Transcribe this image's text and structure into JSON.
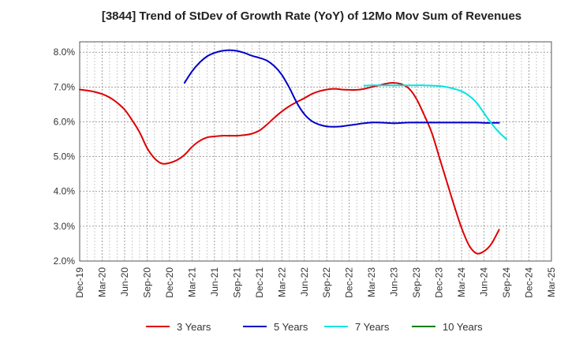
{
  "chart_data": {
    "type": "line",
    "title": "[3844]  Trend of StDev of Growth Rate (YoY) of 12Mo Mov Sum of Revenues",
    "xlabel": "",
    "ylabel": "",
    "ylim": [
      2.0,
      8.3
    ],
    "yticks": [
      2.0,
      3.0,
      4.0,
      5.0,
      6.0,
      7.0,
      8.0
    ],
    "ytick_labels": [
      "2.0%",
      "3.0%",
      "4.0%",
      "5.0%",
      "6.0%",
      "7.0%",
      "8.0%"
    ],
    "x_categories": [
      "Dec-19",
      "Mar-20",
      "Jun-20",
      "Sep-20",
      "Dec-20",
      "Mar-21",
      "Jun-21",
      "Sep-21",
      "Dec-21",
      "Mar-22",
      "Jun-22",
      "Sep-22",
      "Dec-22",
      "Mar-23",
      "Jun-23",
      "Sep-23",
      "Dec-23",
      "Mar-24",
      "Jun-24",
      "Sep-24",
      "Dec-24",
      "Mar-25"
    ],
    "grid": true,
    "legend_position": "bottom",
    "series": [
      {
        "name": "3 Years",
        "color": "#dd0000",
        "start_index": 0,
        "values": [
          6.93,
          6.9,
          6.86,
          6.8,
          6.7,
          6.55,
          6.35,
          6.05,
          5.7,
          5.25,
          4.95,
          4.8,
          4.82,
          4.9,
          5.05,
          5.28,
          5.45,
          5.55,
          5.58,
          5.6,
          5.6,
          5.6,
          5.62,
          5.66,
          5.75,
          5.92,
          6.12,
          6.3,
          6.45,
          6.57,
          6.68,
          6.8,
          6.88,
          6.93,
          6.95,
          6.93,
          6.92,
          6.92,
          6.95,
          7.0,
          7.05,
          7.1,
          7.12,
          7.08,
          6.95,
          6.65,
          6.2,
          5.7,
          5.0,
          4.3,
          3.6,
          2.95,
          2.45,
          2.22,
          2.28,
          2.5,
          2.9
        ]
      },
      {
        "name": "5 Years",
        "color": "#0000cc",
        "start_index": 14,
        "values": [
          7.12,
          7.45,
          7.7,
          7.88,
          7.98,
          8.04,
          8.06,
          8.04,
          7.98,
          7.9,
          7.84,
          7.76,
          7.6,
          7.35,
          6.98,
          6.55,
          6.22,
          6.02,
          5.92,
          5.87,
          5.86,
          5.87,
          5.9,
          5.93,
          5.96,
          5.98,
          5.98,
          5.97,
          5.96,
          5.97,
          5.98,
          5.98,
          5.98,
          5.98,
          5.98,
          5.98,
          5.98,
          5.98,
          5.98,
          5.98,
          5.97,
          5.97,
          5.97
        ]
      },
      {
        "name": "7 Years",
        "color": "#00e5e5",
        "start_index": 38,
        "values": [
          7.04,
          7.05,
          7.05,
          7.05,
          7.05,
          7.05,
          7.05,
          7.05,
          7.05,
          7.04,
          7.03,
          7.0,
          6.95,
          6.88,
          6.75,
          6.55,
          6.25,
          5.95,
          5.7,
          5.5
        ]
      },
      {
        "name": "10 Years",
        "color": "#008000",
        "start_index": 0,
        "values": []
      }
    ]
  }
}
